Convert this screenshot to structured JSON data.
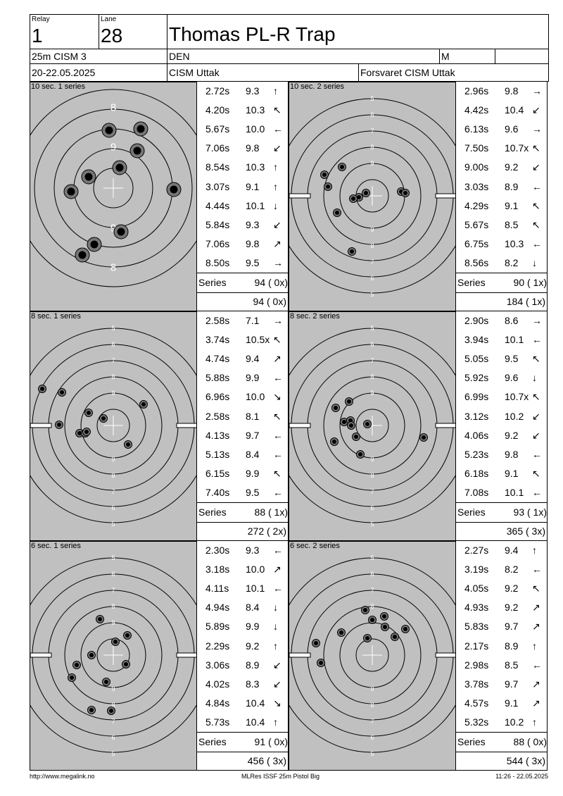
{
  "header": {
    "relay_label": "Relay",
    "relay": "1",
    "lane_label": "Lane",
    "lane": "28",
    "shooter": "Thomas PL-R Trap",
    "event": "25m CISM 3",
    "nation": "DEN",
    "gender": "M",
    "dates": "20-22.05.2025",
    "club": "CISM Uttak",
    "organizer": "Forsvaret CISM Uttak"
  },
  "series": [
    {
      "title": "10 sec. 1 series",
      "shots": [
        {
          "time": "2.72s",
          "score": "9.3",
          "dir": "↑"
        },
        {
          "time": "4.20s",
          "score": "10.3",
          "dir": "↖"
        },
        {
          "time": "5.67s",
          "score": "10.0",
          "dir": "←"
        },
        {
          "time": "7.06s",
          "score": "9.8",
          "dir": "↙"
        },
        {
          "time": "8.54s",
          "score": "10.3",
          "dir": "↑"
        },
        {
          "time": "3.07s",
          "score": "9.1",
          "dir": "↑"
        },
        {
          "time": "4.44s",
          "score": "10.1",
          "dir": "↓"
        },
        {
          "time": "5.84s",
          "score": "9.3",
          "dir": "↙"
        },
        {
          "time": "7.06s",
          "score": "9.8",
          "dir": "↗"
        },
        {
          "time": "8.50s",
          "score": "9.5",
          "dir": "→"
        }
      ],
      "series_label": "Series",
      "series_total": "94 ( 0x)",
      "cumulative": "94 ( 0x)"
    },
    {
      "title": "10 sec. 2 series",
      "shots": [
        {
          "time": "2.96s",
          "score": "9.8",
          "dir": "→"
        },
        {
          "time": "4.42s",
          "score": "10.4",
          "dir": "↙"
        },
        {
          "time": "6.13s",
          "score": "9.6",
          "dir": "→"
        },
        {
          "time": "7.50s",
          "score": "10.7x",
          "dir": "↖"
        },
        {
          "time": "9.00s",
          "score": "9.2",
          "dir": "↙"
        },
        {
          "time": "3.03s",
          "score": "8.9",
          "dir": "←"
        },
        {
          "time": "4.29s",
          "score": "9.1",
          "dir": "↖"
        },
        {
          "time": "5.67s",
          "score": "8.5",
          "dir": "↖"
        },
        {
          "time": "6.75s",
          "score": "10.3",
          "dir": "←"
        },
        {
          "time": "8.56s",
          "score": "8.2",
          "dir": "↓"
        }
      ],
      "series_label": "Series",
      "series_total": "90 ( 1x)",
      "cumulative": "184 ( 1x)"
    },
    {
      "title": "8 sec. 1 series",
      "shots": [
        {
          "time": "2.58s",
          "score": "7.1",
          "dir": "→"
        },
        {
          "time": "3.74s",
          "score": "10.5x",
          "dir": "↖"
        },
        {
          "time": "4.74s",
          "score": "9.4",
          "dir": "↗"
        },
        {
          "time": "5.88s",
          "score": "9.9",
          "dir": "←"
        },
        {
          "time": "6.96s",
          "score": "10.0",
          "dir": "↘"
        },
        {
          "time": "2.58s",
          "score": "8.1",
          "dir": "↖"
        },
        {
          "time": "4.13s",
          "score": "9.7",
          "dir": "←"
        },
        {
          "time": "5.13s",
          "score": "8.4",
          "dir": "←"
        },
        {
          "time": "6.15s",
          "score": "9.9",
          "dir": "↖"
        },
        {
          "time": "7.40s",
          "score": "9.5",
          "dir": "←"
        }
      ],
      "series_label": "Series",
      "series_total": "88 ( 1x)",
      "cumulative": "272 ( 2x)"
    },
    {
      "title": "8 sec. 2 series",
      "shots": [
        {
          "time": "2.90s",
          "score": "8.6",
          "dir": "→"
        },
        {
          "time": "3.94s",
          "score": "10.1",
          "dir": "←"
        },
        {
          "time": "5.05s",
          "score": "9.5",
          "dir": "↖"
        },
        {
          "time": "5.92s",
          "score": "9.6",
          "dir": "↓"
        },
        {
          "time": "6.99s",
          "score": "10.7x",
          "dir": "↖"
        },
        {
          "time": "3.12s",
          "score": "10.2",
          "dir": "↙"
        },
        {
          "time": "4.06s",
          "score": "9.2",
          "dir": "↙"
        },
        {
          "time": "5.23s",
          "score": "9.8",
          "dir": "←"
        },
        {
          "time": "6.18s",
          "score": "9.1",
          "dir": "↖"
        },
        {
          "time": "7.08s",
          "score": "10.1",
          "dir": "←"
        }
      ],
      "series_label": "Series",
      "series_total": "93 ( 1x)",
      "cumulative": "365 ( 3x)"
    },
    {
      "title": "6 sec. 1 series",
      "shots": [
        {
          "time": "2.30s",
          "score": "9.3",
          "dir": "←"
        },
        {
          "time": "3.18s",
          "score": "10.0",
          "dir": "↗"
        },
        {
          "time": "4.11s",
          "score": "10.1",
          "dir": "←"
        },
        {
          "time": "4.94s",
          "score": "8.4",
          "dir": "↓"
        },
        {
          "time": "5.89s",
          "score": "9.9",
          "dir": "↓"
        },
        {
          "time": "2.29s",
          "score": "9.2",
          "dir": "↑"
        },
        {
          "time": "3.06s",
          "score": "8.9",
          "dir": "↙"
        },
        {
          "time": "4.02s",
          "score": "8.3",
          "dir": "↙"
        },
        {
          "time": "4.84s",
          "score": "10.4",
          "dir": "↘"
        },
        {
          "time": "5.73s",
          "score": "10.4",
          "dir": "↑"
        }
      ],
      "series_label": "Series",
      "series_total": "91 ( 0x)",
      "cumulative": "456 ( 3x)"
    },
    {
      "title": "6 sec. 2 series",
      "shots": [
        {
          "time": "2.27s",
          "score": "9.4",
          "dir": "↑"
        },
        {
          "time": "3.19s",
          "score": "8.2",
          "dir": "←"
        },
        {
          "time": "4.05s",
          "score": "9.2",
          "dir": "↖"
        },
        {
          "time": "4.93s",
          "score": "9.2",
          "dir": "↗"
        },
        {
          "time": "5.83s",
          "score": "9.7",
          "dir": "↗"
        },
        {
          "time": "2.17s",
          "score": "8.9",
          "dir": "↑"
        },
        {
          "time": "2.98s",
          "score": "8.5",
          "dir": "←"
        },
        {
          "time": "3.78s",
          "score": "9.7",
          "dir": "↗"
        },
        {
          "time": "4.57s",
          "score": "9.1",
          "dir": "↗"
        },
        {
          "time": "5.32s",
          "score": "10.2",
          "dir": "↑"
        }
      ],
      "series_label": "Series",
      "series_total": "88 ( 0x)",
      "cumulative": "544 ( 3x)"
    }
  ],
  "footer": {
    "website": "http://www.megalink.no",
    "software": "MLRes ISSF 25m Pistol Big",
    "printed": "11:26 - 22.05.2025"
  }
}
